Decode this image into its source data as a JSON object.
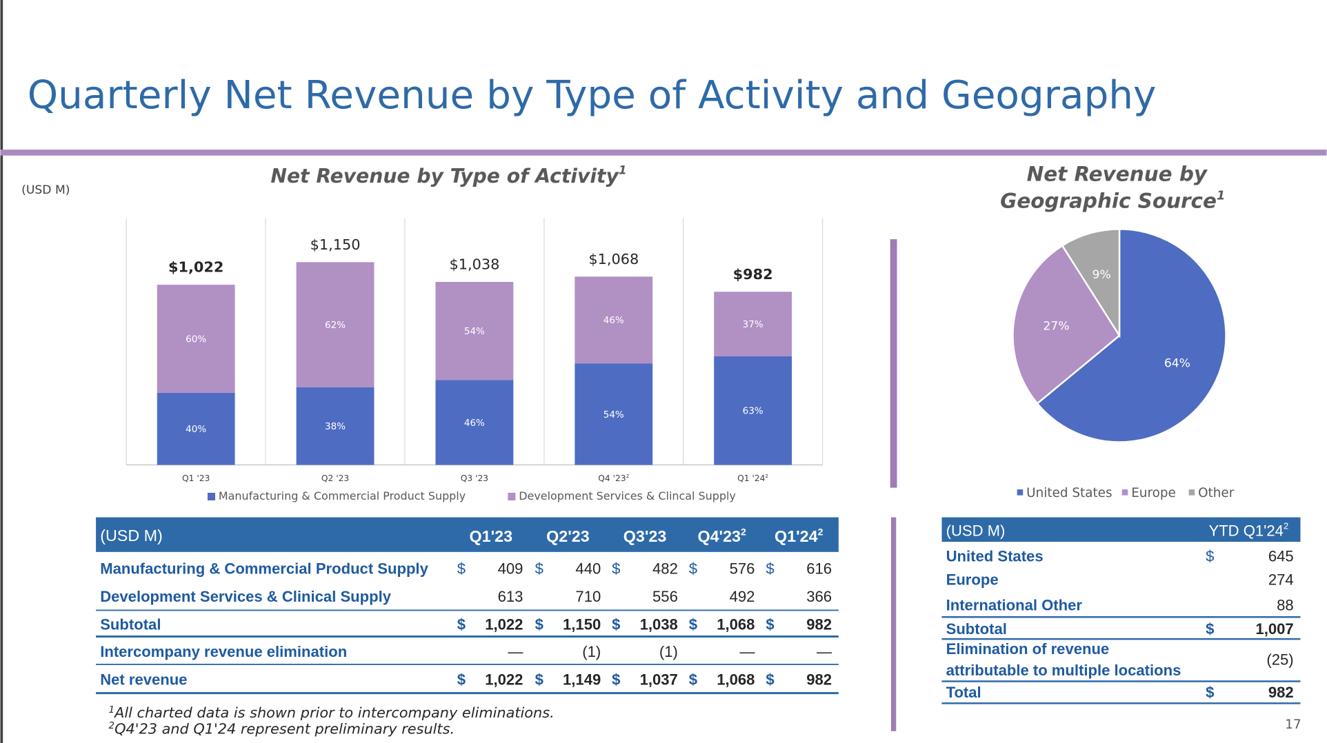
{
  "header": {
    "title": "Quarterly Net Revenue by Type of Activity and Geography",
    "unit_note": "(USD M)",
    "page_number": "17"
  },
  "chart_data": [
    {
      "type": "stacked-bar",
      "title": "Net Revenue by Type of Activity",
      "title_note": "1",
      "categories": [
        "Q1 '23",
        "Q2 '23",
        "Q3 '23",
        "Q4 '23",
        "Q1 '24"
      ],
      "category_notes": [
        null,
        null,
        null,
        "2",
        "2"
      ],
      "series": [
        {
          "name": "Manufacturing & Commercial Product Supply",
          "color": "#4e6cc1",
          "values": [
            409,
            440,
            482,
            576,
            616
          ],
          "shares": [
            "40%",
            "38%",
            "46%",
            "54%",
            "63%"
          ]
        },
        {
          "name": "Development Services & Clincal Supply",
          "color": "#b190c4",
          "values": [
            613,
            710,
            556,
            492,
            366
          ],
          "shares": [
            "60%",
            "62%",
            "54%",
            "46%",
            "37%"
          ]
        }
      ],
      "total_labels": [
        "$1,022",
        "$1,150",
        "$1,038",
        "$1,068",
        "$982"
      ],
      "total_label_bold": [
        true,
        false,
        false,
        false,
        true
      ],
      "ylim": [
        0,
        1400
      ],
      "legend": "bottom"
    },
    {
      "type": "pie",
      "title": "Net Revenue by",
      "title_line2": "Geographic Source",
      "title_note": "1",
      "categories": [
        "United States",
        "Europe",
        "Other"
      ],
      "values": [
        64,
        27,
        9
      ],
      "value_labels": [
        "64%",
        "27%",
        "9%"
      ],
      "colors": [
        "#4e6cc1",
        "#b190c4",
        "#a6a6a6"
      ],
      "legend": "bottom"
    }
  ],
  "activity_table": {
    "header": [
      "(USD M)",
      "Q1'23",
      "Q2'23",
      "Q3'23",
      "Q4'23",
      "Q1'24"
    ],
    "header_notes": [
      null,
      null,
      null,
      null,
      "2",
      "2"
    ],
    "rows": [
      {
        "label": "Manufacturing & Commercial Product Supply",
        "currency": "$",
        "values": [
          "409",
          "440",
          "482",
          "576",
          "616"
        ],
        "bold": false
      },
      {
        "label": "Development Services & Clinical Supply",
        "currency": null,
        "values": [
          "613",
          "710",
          "556",
          "492",
          "366"
        ],
        "bold": false
      },
      {
        "label": "Subtotal",
        "currency": "$",
        "values": [
          "1,022",
          "1,150",
          "1,038",
          "1,068",
          "982"
        ],
        "bold": true
      },
      {
        "label": "Intercompany  revenue elimination",
        "currency": null,
        "values": [
          "—",
          "(1)",
          "(1)",
          "—",
          "—"
        ],
        "bold": false
      },
      {
        "label": "Net revenue",
        "currency": "$",
        "values": [
          "1,022",
          "1,149",
          "1,037",
          "1,068",
          "982"
        ],
        "bold": true
      }
    ]
  },
  "geo_table": {
    "header": [
      "(USD M)",
      "YTD Q1'24"
    ],
    "header_note": "2",
    "rows": [
      {
        "label_lines": [
          "United States"
        ],
        "currency": "$",
        "value": "645",
        "bold": false
      },
      {
        "label_lines": [
          "Europe"
        ],
        "currency": null,
        "value": "274",
        "bold": false
      },
      {
        "label_lines": [
          "International Other"
        ],
        "currency": null,
        "value": "88",
        "bold": false
      },
      {
        "label_lines": [
          "Subtotal"
        ],
        "currency": "$",
        "value": "1,007",
        "bold": true
      },
      {
        "label_lines": [
          "Elimination of revenue",
          "attributable to multiple locations"
        ],
        "currency": null,
        "value": "(25)",
        "bold": false
      },
      {
        "label_lines": [
          "Total"
        ],
        "currency": "$",
        "value": "982",
        "bold": true
      }
    ]
  },
  "footnotes": [
    {
      "mark": "1",
      "text": "All charted data is shown prior to intercompany eliminations."
    },
    {
      "mark": "2",
      "text": "Q4'23 and Q1'24 represent preliminary results."
    }
  ]
}
